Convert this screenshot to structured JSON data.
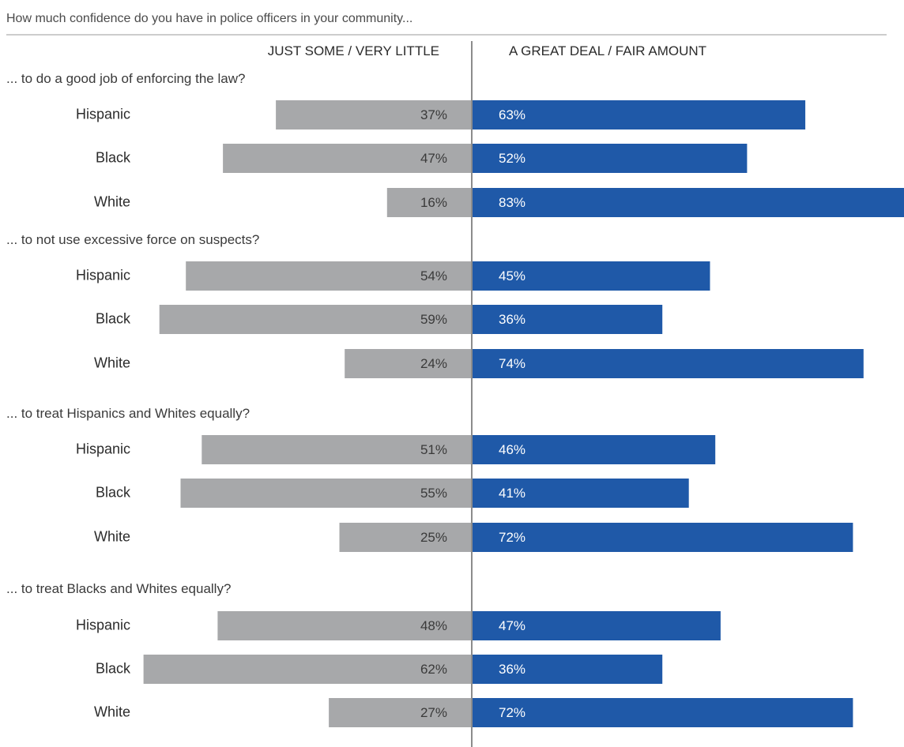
{
  "chart_data": {
    "type": "bar",
    "title": "How much confidence do you have in police officers in your community...",
    "columns": {
      "negative": "JUST SOME / VERY LITTLE",
      "positive": "A GREAT DEAL / FAIR AMOUNT"
    },
    "colors": {
      "negative": "#a7a8aa",
      "positive": "#1f59a8",
      "axis": "#8c8c8c",
      "rule": "#9a9a9a"
    },
    "questions": [
      {
        "label": "... to do a good job of enforcing the law?",
        "groups": [
          {
            "name": "Hispanic",
            "negative": 37,
            "positive": 63,
            "negative_label": "37%",
            "positive_label": "63%"
          },
          {
            "name": "Black",
            "negative": 47,
            "positive": 52,
            "negative_label": "47%",
            "positive_label": "52%"
          },
          {
            "name": "White",
            "negative": 16,
            "positive": 83,
            "negative_label": "16%",
            "positive_label": "83%"
          }
        ]
      },
      {
        "label": "... to not use excessive force on suspects?",
        "groups": [
          {
            "name": "Hispanic",
            "negative": 54,
            "positive": 45,
            "negative_label": "54%",
            "positive_label": "45%"
          },
          {
            "name": "Black",
            "negative": 59,
            "positive": 36,
            "negative_label": "59%",
            "positive_label": "36%"
          },
          {
            "name": "White",
            "negative": 24,
            "positive": 74,
            "negative_label": "24%",
            "positive_label": "74%"
          }
        ]
      },
      {
        "label": "... to treat Hispanics and Whites equally?",
        "groups": [
          {
            "name": "Hispanic",
            "negative": 51,
            "positive": 46,
            "negative_label": "51%",
            "positive_label": "46%"
          },
          {
            "name": "Black",
            "negative": 55,
            "positive": 41,
            "negative_label": "55%",
            "positive_label": "41%"
          },
          {
            "name": "White",
            "negative": 25,
            "positive": 72,
            "negative_label": "25%",
            "positive_label": "72%"
          }
        ]
      },
      {
        "label": "... to treat Blacks and Whites equally?",
        "groups": [
          {
            "name": "Hispanic",
            "negative": 48,
            "positive": 47,
            "negative_label": "48%",
            "positive_label": "47%"
          },
          {
            "name": "Black",
            "negative": 62,
            "positive": 36,
            "negative_label": "62%",
            "positive_label": "36%"
          },
          {
            "name": "White",
            "negative": 27,
            "positive": 72,
            "negative_label": "27%",
            "positive_label": "72%"
          }
        ]
      }
    ]
  }
}
